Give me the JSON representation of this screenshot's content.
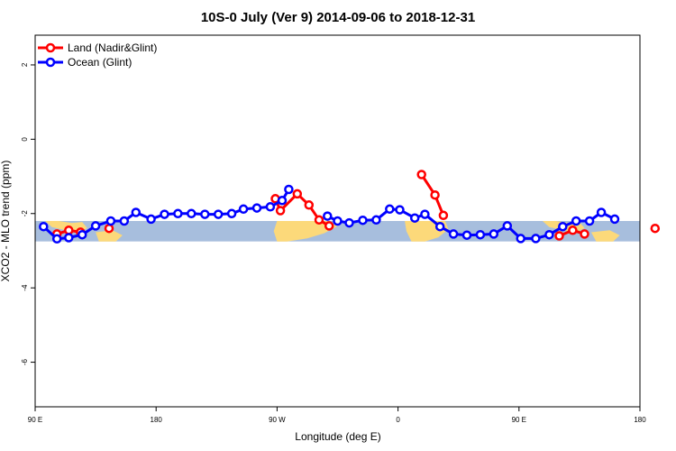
{
  "chart_data": {
    "type": "line",
    "title": "10S-0 July (Ver 9)   2014-09-06 to 2018-12-31",
    "xlabel": "Longitude (deg E)",
    "ylabel": "XCO2 - MLO trend (ppm)",
    "xlim": [
      90,
      450
    ],
    "ylim": [
      -7.2,
      2.8
    ],
    "x_ticks": [
      {
        "value": 90,
        "label": "90 E"
      },
      {
        "value": 162,
        "label": "180"
      },
      {
        "value": 234,
        "label": "90 W"
      },
      {
        "value": 306,
        "label": "0"
      },
      {
        "value": 378,
        "label": "90 E"
      },
      {
        "value": 450,
        "label": "180"
      }
    ],
    "y_ticks": [
      {
        "value": 2,
        "label": "2"
      },
      {
        "value": 0,
        "label": "0"
      },
      {
        "value": -2,
        "label": "-2"
      },
      {
        "value": -4,
        "label": "-4"
      },
      {
        "value": -6,
        "label": "-6"
      }
    ],
    "legend_position": "top-left",
    "map_band": {
      "y_top": -2.2,
      "y_bottom": -2.75,
      "ocean_color": "#a7bedd",
      "land_color": "#fcd97a"
    },
    "series": [
      {
        "name": "Land (Nadir&Glint)",
        "color": "#ff0000",
        "segments": [
          [
            [
              103,
              -2.55
            ],
            [
              110,
              -2.45
            ],
            [
              117,
              -2.5
            ]
          ],
          [
            [
              134,
              -2.4
            ]
          ],
          [
            [
              233,
              -1.6
            ],
            [
              236,
              -1.92
            ],
            [
              246,
              -1.47
            ],
            [
              253,
              -1.77
            ],
            [
              259,
              -2.17
            ],
            [
              265,
              -2.33
            ]
          ],
          [
            [
              320,
              -0.95
            ],
            [
              328,
              -1.5
            ],
            [
              333,
              -2.05
            ]
          ],
          [
            [
              402,
              -2.6
            ],
            [
              410,
              -2.45
            ],
            [
              417,
              -2.55
            ]
          ],
          [
            [
              459,
              -2.4
            ]
          ]
        ]
      },
      {
        "name": "Ocean (Glint)",
        "color": "#0000ff",
        "segments": [
          [
            [
              95,
              -2.35
            ],
            [
              103,
              -2.68
            ],
            [
              110,
              -2.65
            ],
            [
              118,
              -2.57
            ],
            [
              126,
              -2.33
            ],
            [
              135,
              -2.2
            ],
            [
              143,
              -2.2
            ],
            [
              150,
              -1.97
            ],
            [
              159,
              -2.15
            ],
            [
              167,
              -2.02
            ],
            [
              175,
              -2.0
            ],
            [
              183,
              -2.0
            ],
            [
              191,
              -2.02
            ],
            [
              199,
              -2.02
            ],
            [
              207,
              -2.0
            ],
            [
              214,
              -1.88
            ],
            [
              222,
              -1.85
            ],
            [
              230,
              -1.82
            ],
            [
              237,
              -1.65
            ],
            [
              241,
              -1.35
            ]
          ],
          [
            [
              264,
              -2.07
            ],
            [
              270,
              -2.2
            ],
            [
              277,
              -2.25
            ],
            [
              285,
              -2.18
            ],
            [
              293,
              -2.17
            ],
            [
              301,
              -1.88
            ],
            [
              307,
              -1.9
            ],
            [
              316,
              -2.12
            ],
            [
              322,
              -2.02
            ],
            [
              331,
              -2.35
            ],
            [
              339,
              -2.55
            ],
            [
              347,
              -2.58
            ],
            [
              355,
              -2.57
            ],
            [
              363,
              -2.55
            ],
            [
              371,
              -2.33
            ],
            [
              379,
              -2.67
            ],
            [
              388,
              -2.67
            ],
            [
              396,
              -2.57
            ],
            [
              404,
              -2.35
            ],
            [
              412,
              -2.2
            ],
            [
              420,
              -2.2
            ],
            [
              427,
              -1.97
            ],
            [
              435,
              -2.15
            ]
          ]
        ]
      }
    ]
  }
}
